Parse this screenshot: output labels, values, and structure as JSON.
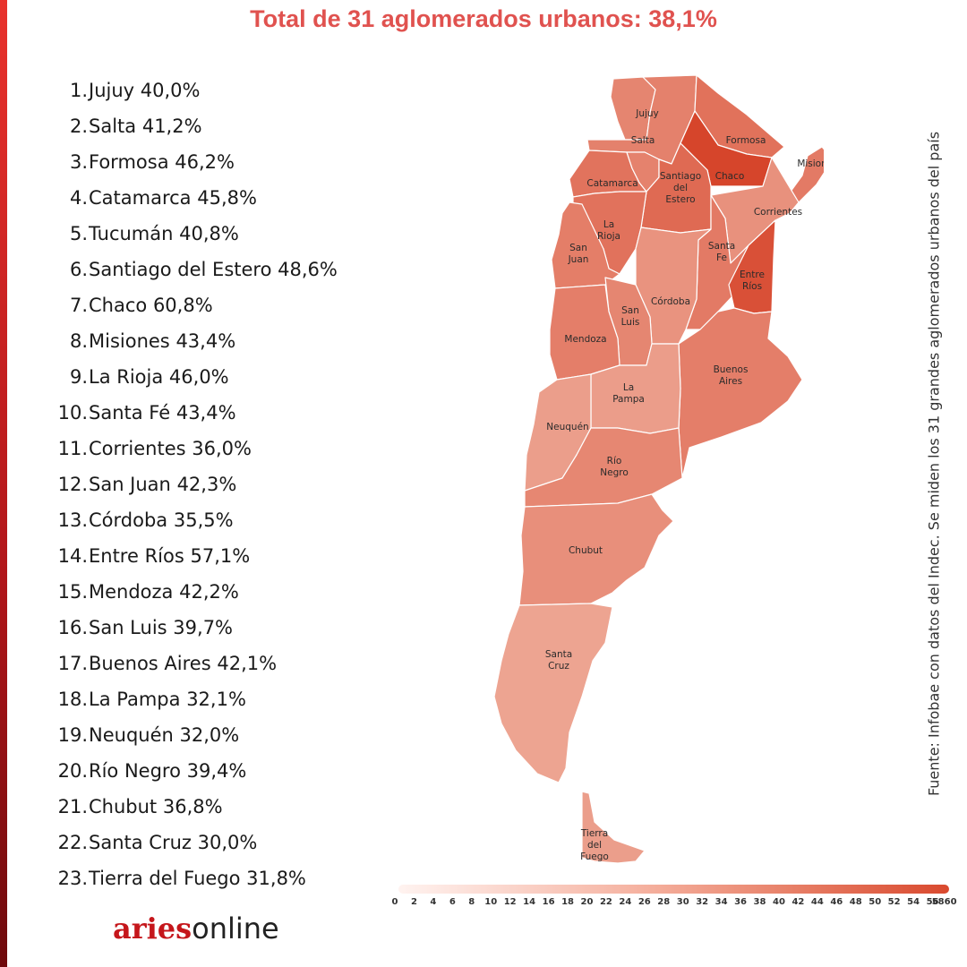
{
  "title": "Total de 31 aglomerados urbanos: 38,1%",
  "colors": {
    "title": "#e0524f",
    "accent": "#d9261c",
    "brand": "#c5161b",
    "border": "#ffffff"
  },
  "provinces": [
    {
      "rank": "1.",
      "name": "Jujuy",
      "value": "40,0%",
      "v": 40.0
    },
    {
      "rank": "2.",
      "name": "Salta",
      "value": "41,2%",
      "v": 41.2
    },
    {
      "rank": "3.",
      "name": "Formosa",
      "value": "46,2%",
      "v": 46.2
    },
    {
      "rank": "4.",
      "name": "Catamarca",
      "value": "45,8%",
      "v": 45.8
    },
    {
      "rank": "5.",
      "name": "Tucumán",
      "value": "40,8%",
      "v": 40.8
    },
    {
      "rank": "6.",
      "name": "Santiago del Estero",
      "value": "48,6%",
      "v": 48.6
    },
    {
      "rank": "7.",
      "name": "Chaco",
      "value": "60,8%",
      "v": 60.8
    },
    {
      "rank": "8.",
      "name": "Misiones",
      "value": "43,4%",
      "v": 43.4
    },
    {
      "rank": "9.",
      "name": "La Rioja",
      "value": "46,0%",
      "v": 46.0
    },
    {
      "rank": "10.",
      "name": "Santa Fé",
      "value": "43,4%",
      "v": 43.4
    },
    {
      "rank": "11.",
      "name": "Corrientes",
      "value": "36,0%",
      "v": 36.0
    },
    {
      "rank": "12.",
      "name": "San Juan",
      "value": "42,3%",
      "v": 42.3
    },
    {
      "rank": "13.",
      "name": "Córdoba",
      "value": "35,5%",
      "v": 35.5
    },
    {
      "rank": "14.",
      "name": "Entre Ríos",
      "value": "57,1%",
      "v": 57.1
    },
    {
      "rank": "15.",
      "name": "Mendoza",
      "value": "42,2%",
      "v": 42.2
    },
    {
      "rank": "16.",
      "name": "San Luis",
      "value": "39,7%",
      "v": 39.7
    },
    {
      "rank": "17.",
      "name": "Buenos Aires",
      "value": "42,1%",
      "v": 42.1
    },
    {
      "rank": "18.",
      "name": "La Pampa",
      "value": "32,1%",
      "v": 32.1
    },
    {
      "rank": "19.",
      "name": "Neuquén",
      "value": "32,0%",
      "v": 32.0
    },
    {
      "rank": "20.",
      "name": "Río Negro",
      "value": "39,4%",
      "v": 39.4
    },
    {
      "rank": "21.",
      "name": "Chubut",
      "value": "36,8%",
      "v": 36.8
    },
    {
      "rank": "22.",
      "name": "Santa Cruz",
      "value": "30,0%",
      "v": 30.0
    },
    {
      "rank": "23.",
      "name": "Tierra del Fuego",
      "value": "31,8%",
      "v": 31.8
    }
  ],
  "map_labels": {
    "jujuy": [
      "Jujuy"
    ],
    "salta": [
      "Salta"
    ],
    "formosa": [
      "Formosa"
    ],
    "misiones": [
      "Misiones"
    ],
    "catamarca": [
      "Catamarca"
    ],
    "santiago": [
      "Santiago",
      "del",
      "Estero"
    ],
    "chaco": [
      "Chaco"
    ],
    "corrientes": [
      "Corrientes"
    ],
    "larioja": [
      "La",
      "Rioja"
    ],
    "sanjuan": [
      "San",
      "Juan"
    ],
    "santafe": [
      "Santa",
      "Fe"
    ],
    "entrerios": [
      "Entre",
      "Ríos"
    ],
    "cordoba": [
      "Córdoba"
    ],
    "sanluis": [
      "San",
      "Luis"
    ],
    "mendoza": [
      "Mendoza"
    ],
    "buenosaires": [
      "Buenos",
      "Aires"
    ],
    "lapampa": [
      "La",
      "Pampa"
    ],
    "neuquen": [
      "Neuquén"
    ],
    "rionegro": [
      "Río",
      "Negro"
    ],
    "chubut": [
      "Chubut"
    ],
    "santacruz": [
      "Santa",
      "Cruz"
    ],
    "tierradelfuego": [
      "Tierra",
      "del",
      "Fuego"
    ]
  },
  "map_values": {
    "jujuy": 40.0,
    "salta": 41.2,
    "formosa": 46.2,
    "misiones": 43.4,
    "catamarca": 45.8,
    "tucuman": 40.8,
    "santiago": 48.6,
    "chaco": 60.8,
    "corrientes": 36.0,
    "larioja": 46.0,
    "sanjuan": 42.3,
    "santafe": 43.4,
    "entrerios": 57.1,
    "cordoba": 35.5,
    "sanluis": 39.7,
    "mendoza": 42.2,
    "buenosaires": 42.1,
    "lapampa": 32.1,
    "neuquen": 32.0,
    "rionegro": 39.4,
    "chubut": 36.8,
    "santacruz": 30.0,
    "tierradelfuego": 31.8
  },
  "scale": {
    "min": 0,
    "max": 60,
    "ticks": [
      "0",
      "2",
      "4",
      "6",
      "8",
      "10",
      "12",
      "14",
      "16",
      "18",
      "20",
      "22",
      "24",
      "26",
      "28",
      "30",
      "32",
      "34",
      "36",
      "38",
      "40",
      "42",
      "44",
      "46",
      "48",
      "50",
      "52",
      "54",
      "56",
      "5860"
    ]
  },
  "source": "Fuente: Infobae con datos del Indec. Se miden los 31 grandes aglomerados urbanos del país",
  "brand": {
    "part1": "aries",
    "part2": "online"
  }
}
